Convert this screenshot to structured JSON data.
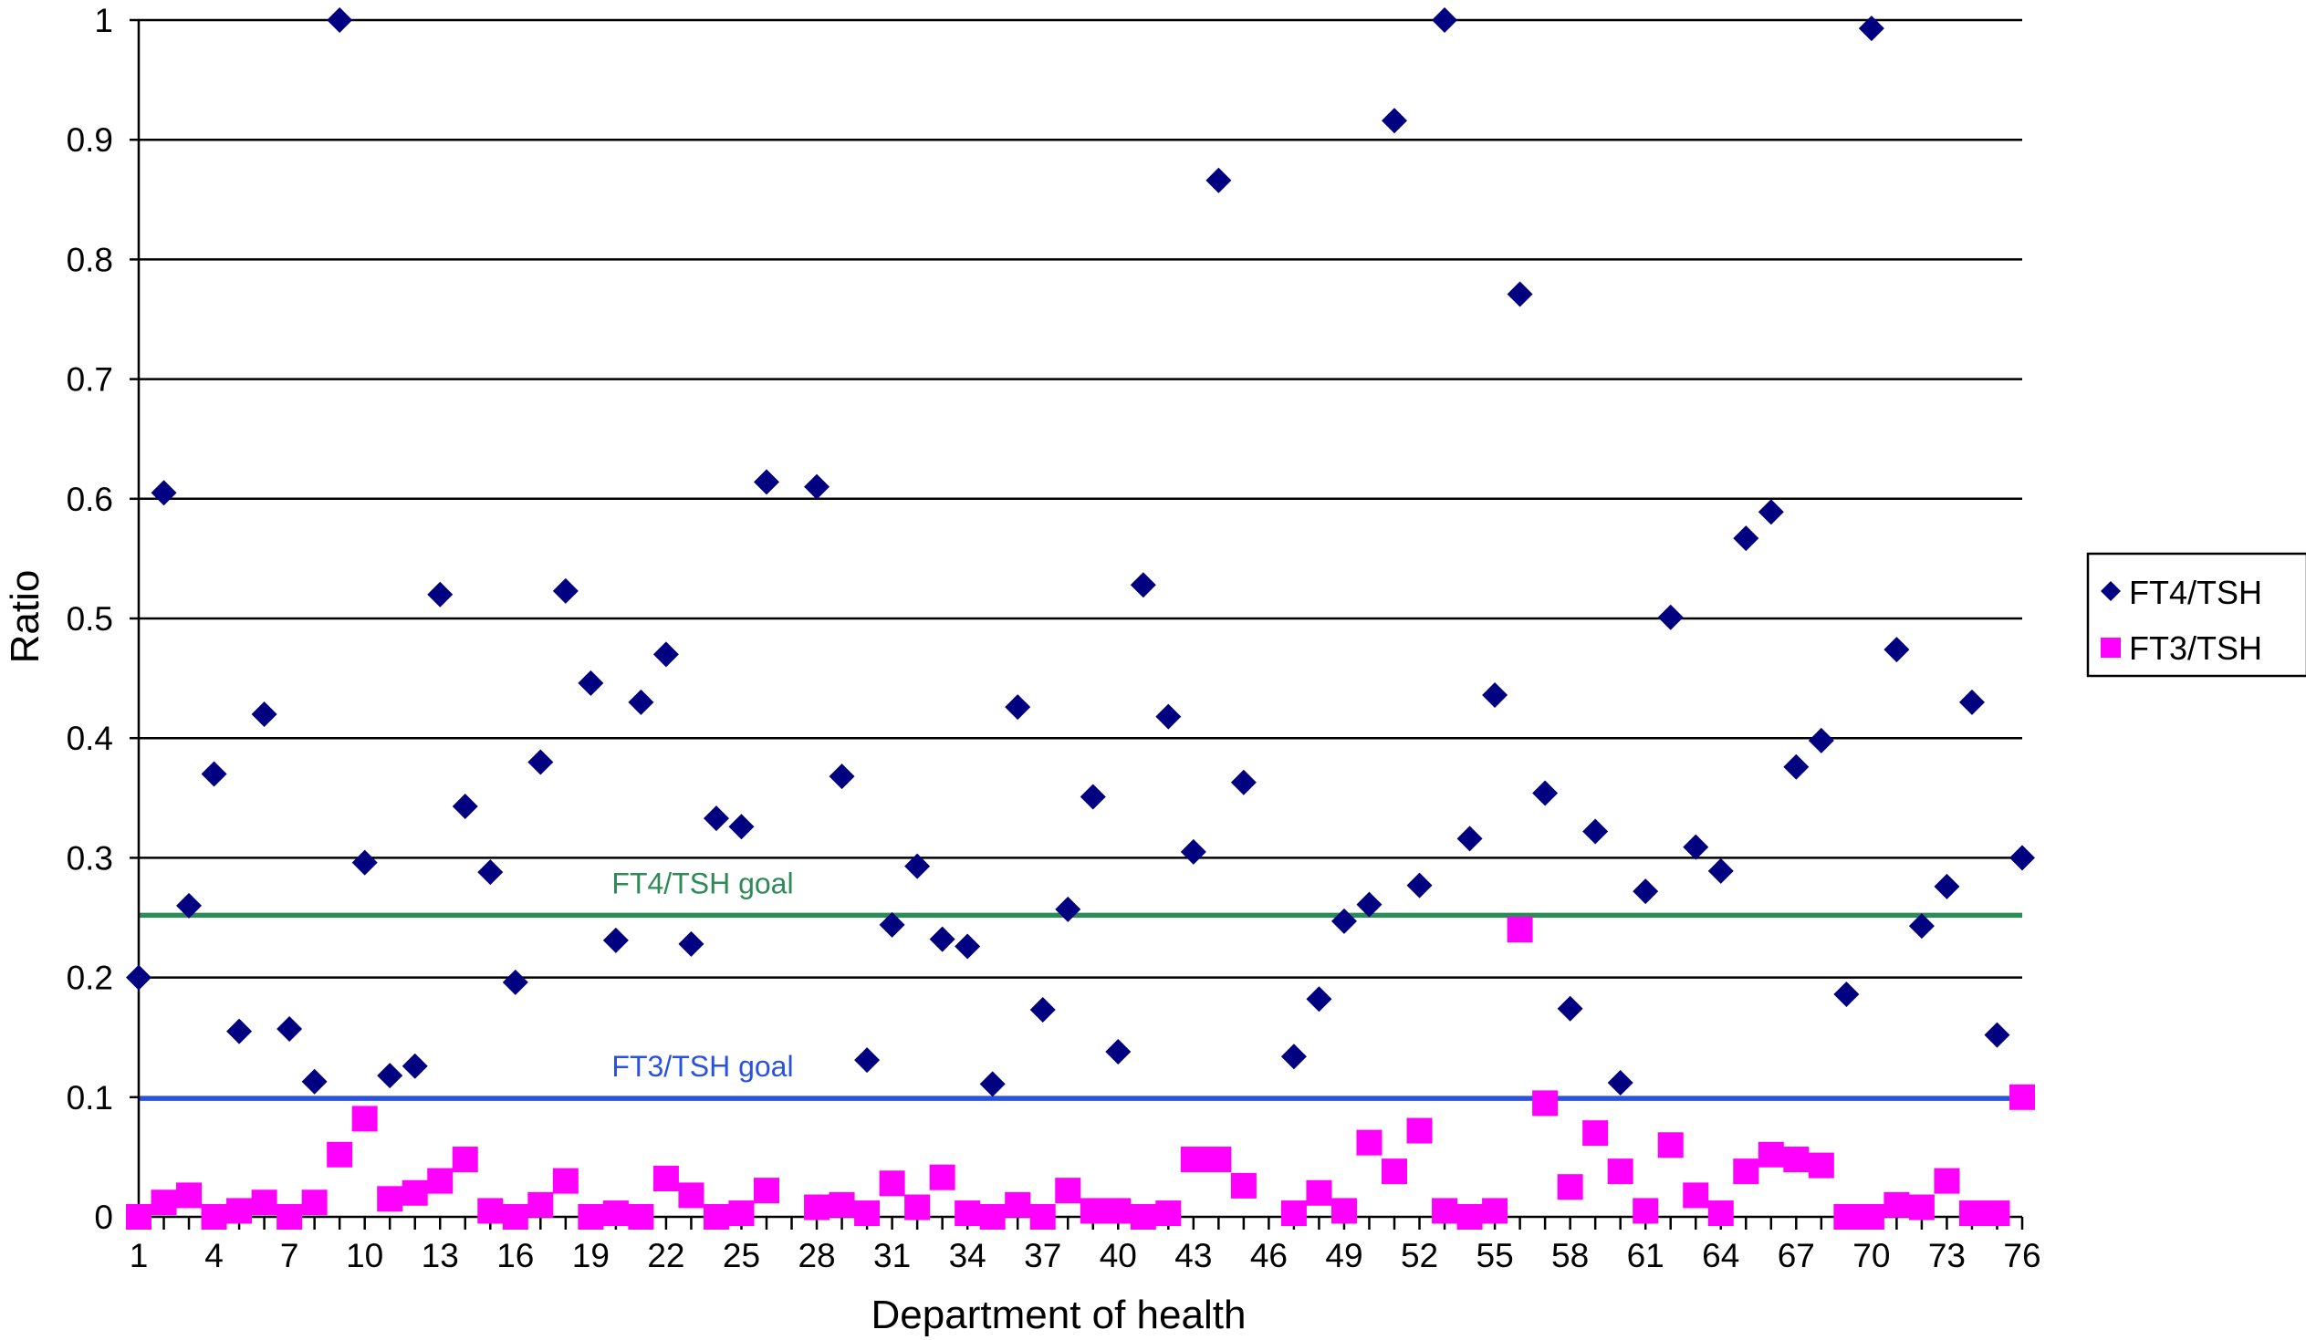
{
  "chart_data": {
    "type": "scatter",
    "title": "",
    "xlabel": "Department of health",
    "ylabel": "Ratio",
    "xlim": [
      1,
      76
    ],
    "ylim": [
      0,
      1
    ],
    "x_ticks": [
      "1",
      "4",
      "7",
      "10",
      "13",
      "16",
      "19",
      "22",
      "25",
      "28",
      "31",
      "34",
      "37",
      "40",
      "43",
      "46",
      "49",
      "52",
      "55",
      "58",
      "61",
      "64",
      "67",
      "70",
      "73",
      "76"
    ],
    "y_ticks": [
      "0",
      "0.1",
      "0.2",
      "0.3",
      "0.4",
      "0.5",
      "0.6",
      "0.7",
      "0.8",
      "0.9",
      "1"
    ],
    "grid": true,
    "legend_position": "right",
    "series": [
      {
        "name": "FT4/TSH",
        "marker": "diamond",
        "color": "#000080",
        "x": [
          1,
          2,
          3,
          4,
          5,
          6,
          7,
          8,
          9,
          10,
          11,
          12,
          13,
          14,
          15,
          16,
          17,
          18,
          19,
          20,
          21,
          22,
          23,
          24,
          25,
          26,
          27,
          28,
          29,
          30,
          31,
          32,
          33,
          34,
          35,
          36,
          37,
          38,
          39,
          40,
          41,
          42,
          43,
          44,
          45,
          46,
          47,
          48,
          49,
          50,
          51,
          52,
          53,
          54,
          55,
          56,
          57,
          58,
          59,
          60,
          61,
          62,
          63,
          64,
          65,
          66,
          67,
          68,
          69,
          70,
          71,
          72,
          73,
          74,
          75,
          76
        ],
        "values": [
          0.2,
          0.605,
          0.26,
          0.37,
          0.155,
          0.42,
          0.157,
          0.113,
          1.0,
          0.296,
          0.118,
          0.126,
          0.52,
          0.343,
          0.288,
          0.196,
          0.38,
          0.523,
          0.446,
          0.231,
          0.43,
          0.47,
          0.228,
          0.333,
          0.326,
          0.614,
          null,
          0.61,
          0.368,
          0.131,
          0.244,
          0.293,
          0.232,
          0.226,
          0.111,
          0.426,
          0.173,
          0.257,
          0.351,
          0.138,
          0.528,
          0.418,
          0.305,
          0.866,
          0.363,
          null,
          0.134,
          0.182,
          0.247,
          0.261,
          0.916,
          0.277,
          1.0,
          0.316,
          0.436,
          0.771,
          0.354,
          0.174,
          0.322,
          0.112,
          0.272,
          0.501,
          0.309,
          0.289,
          0.567,
          0.589,
          0.376,
          0.398,
          0.186,
          0.993,
          0.474,
          0.243,
          0.276,
          0.43,
          0.152,
          0.3
        ]
      },
      {
        "name": "FT3/TSH",
        "marker": "square",
        "color": "#ff00ff",
        "x": [
          1,
          2,
          3,
          4,
          5,
          6,
          7,
          8,
          9,
          10,
          11,
          12,
          13,
          14,
          15,
          16,
          17,
          18,
          19,
          20,
          21,
          22,
          23,
          24,
          25,
          26,
          27,
          28,
          29,
          30,
          31,
          32,
          33,
          34,
          35,
          36,
          37,
          38,
          39,
          40,
          41,
          42,
          43,
          44,
          45,
          46,
          47,
          48,
          49,
          50,
          51,
          52,
          53,
          54,
          55,
          56,
          57,
          58,
          59,
          60,
          61,
          62,
          63,
          64,
          65,
          66,
          67,
          68,
          69,
          70,
          71,
          72,
          73,
          74,
          75,
          76
        ],
        "values": [
          0.0,
          0.012,
          0.018,
          0.0,
          0.005,
          0.012,
          0.0,
          0.012,
          0.052,
          0.082,
          0.015,
          0.02,
          0.03,
          0.048,
          0.005,
          0.0,
          0.01,
          0.03,
          0.0,
          0.003,
          0.0,
          0.032,
          0.018,
          0.0,
          0.003,
          0.022,
          null,
          0.008,
          0.01,
          0.003,
          0.028,
          0.008,
          0.033,
          0.003,
          0.0,
          0.01,
          0.0,
          0.022,
          0.005,
          0.005,
          0.0,
          0.003,
          0.048,
          0.048,
          0.026,
          null,
          0.003,
          0.02,
          0.005,
          0.062,
          0.038,
          0.072,
          0.005,
          0.0,
          0.005,
          0.24,
          0.095,
          0.025,
          0.07,
          0.038,
          0.005,
          0.06,
          0.018,
          0.003,
          0.038,
          0.052,
          0.048,
          0.043,
          0.0,
          0.0,
          0.01,
          0.008,
          0.03,
          0.003,
          0.003,
          0.1
        ]
      }
    ],
    "reference_lines": [
      {
        "label": "FT4/TSH goal",
        "value": 0.252,
        "color": "#2e8b57"
      },
      {
        "label": "FT3/TSH goal",
        "value": 0.099,
        "color": "#2a52e0"
      }
    ]
  }
}
